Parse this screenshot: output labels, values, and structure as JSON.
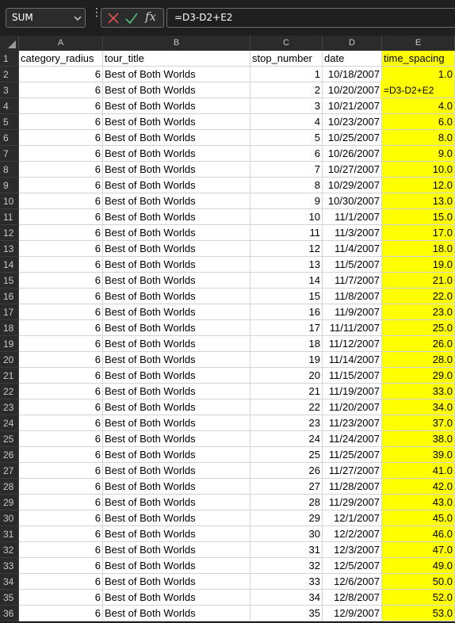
{
  "namebox": {
    "value": "SUM"
  },
  "formula_bar": {
    "text": "=D3-D2+E2",
    "fx_label": "fx"
  },
  "columns": [
    "A",
    "B",
    "C",
    "D",
    "E"
  ],
  "headers": [
    "category_radius",
    "tour_title",
    "stop_number",
    "date",
    "time_spacing"
  ],
  "rows": [
    [
      "2",
      "6",
      "Best of Both Worlds",
      "1",
      "10/18/2007",
      "1.0"
    ],
    [
      "3",
      "6",
      "Best of Both Worlds",
      "2",
      "10/20/2007",
      "=D3-D2+E2"
    ],
    [
      "4",
      "6",
      "Best of Both Worlds",
      "3",
      "10/21/2007",
      "4.0"
    ],
    [
      "5",
      "6",
      "Best of Both Worlds",
      "4",
      "10/23/2007",
      "6.0"
    ],
    [
      "6",
      "6",
      "Best of Both Worlds",
      "5",
      "10/25/2007",
      "8.0"
    ],
    [
      "7",
      "6",
      "Best of Both Worlds",
      "6",
      "10/26/2007",
      "9.0"
    ],
    [
      "8",
      "6",
      "Best of Both Worlds",
      "7",
      "10/27/2007",
      "10.0"
    ],
    [
      "9",
      "6",
      "Best of Both Worlds",
      "8",
      "10/29/2007",
      "12.0"
    ],
    [
      "10",
      "6",
      "Best of Both Worlds",
      "9",
      "10/30/2007",
      "13.0"
    ],
    [
      "11",
      "6",
      "Best of Both Worlds",
      "10",
      "11/1/2007",
      "15.0"
    ],
    [
      "12",
      "6",
      "Best of Both Worlds",
      "11",
      "11/3/2007",
      "17.0"
    ],
    [
      "13",
      "6",
      "Best of Both Worlds",
      "12",
      "11/4/2007",
      "18.0"
    ],
    [
      "14",
      "6",
      "Best of Both Worlds",
      "13",
      "11/5/2007",
      "19.0"
    ],
    [
      "15",
      "6",
      "Best of Both Worlds",
      "14",
      "11/7/2007",
      "21.0"
    ],
    [
      "16",
      "6",
      "Best of Both Worlds",
      "15",
      "11/8/2007",
      "22.0"
    ],
    [
      "17",
      "6",
      "Best of Both Worlds",
      "16",
      "11/9/2007",
      "23.0"
    ],
    [
      "18",
      "6",
      "Best of Both Worlds",
      "17",
      "11/11/2007",
      "25.0"
    ],
    [
      "19",
      "6",
      "Best of Both Worlds",
      "18",
      "11/12/2007",
      "26.0"
    ],
    [
      "20",
      "6",
      "Best of Both Worlds",
      "19",
      "11/14/2007",
      "28.0"
    ],
    [
      "21",
      "6",
      "Best of Both Worlds",
      "20",
      "11/15/2007",
      "29.0"
    ],
    [
      "22",
      "6",
      "Best of Both Worlds",
      "21",
      "11/19/2007",
      "33.0"
    ],
    [
      "23",
      "6",
      "Best of Both Worlds",
      "22",
      "11/20/2007",
      "34.0"
    ],
    [
      "24",
      "6",
      "Best of Both Worlds",
      "23",
      "11/23/2007",
      "37.0"
    ],
    [
      "25",
      "6",
      "Best of Both Worlds",
      "24",
      "11/24/2007",
      "38.0"
    ],
    [
      "26",
      "6",
      "Best of Both Worlds",
      "25",
      "11/25/2007",
      "39.0"
    ],
    [
      "27",
      "6",
      "Best of Both Worlds",
      "26",
      "11/27/2007",
      "41.0"
    ],
    [
      "28",
      "6",
      "Best of Both Worlds",
      "27",
      "11/28/2007",
      "42.0"
    ],
    [
      "29",
      "6",
      "Best of Both Worlds",
      "28",
      "11/29/2007",
      "43.0"
    ],
    [
      "30",
      "6",
      "Best of Both Worlds",
      "29",
      "12/1/2007",
      "45.0"
    ],
    [
      "31",
      "6",
      "Best of Both Worlds",
      "30",
      "12/2/2007",
      "46.0"
    ],
    [
      "32",
      "6",
      "Best of Both Worlds",
      "31",
      "12/3/2007",
      "47.0"
    ],
    [
      "33",
      "6",
      "Best of Both Worlds",
      "32",
      "12/5/2007",
      "49.0"
    ],
    [
      "34",
      "6",
      "Best of Both Worlds",
      "33",
      "12/6/2007",
      "50.0"
    ],
    [
      "35",
      "6",
      "Best of Both Worlds",
      "34",
      "12/8/2007",
      "52.0"
    ],
    [
      "36",
      "6",
      "Best of Both Worlds",
      "35",
      "12/9/2007",
      "53.0"
    ]
  ],
  "colors": {
    "highlight": "#ffff00",
    "chrome": "#1f1f1f",
    "cancel": "#e05050",
    "enter": "#4fbf6f"
  }
}
